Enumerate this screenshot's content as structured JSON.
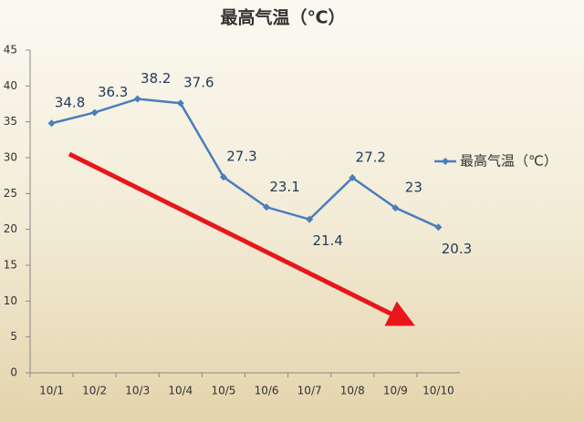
{
  "chart_data": {
    "type": "line",
    "title": "最高气温（℃）",
    "categories": [
      "10/1",
      "10/2",
      "10/3",
      "10/4",
      "10/5",
      "10/6",
      "10/7",
      "10/8",
      "10/9",
      "10/10"
    ],
    "series": [
      {
        "name": "最高气温（℃）",
        "color": "#4a7ebb",
        "values": [
          34.8,
          36.3,
          38.2,
          37.6,
          27.3,
          23.1,
          21.4,
          27.2,
          23,
          20.3
        ]
      }
    ],
    "ylim": [
      0,
      45
    ],
    "yticks": [
      0,
      5,
      10,
      15,
      20,
      25,
      30,
      35,
      40,
      45
    ],
    "grid": false,
    "legend": "right",
    "data_labels": true
  }
}
